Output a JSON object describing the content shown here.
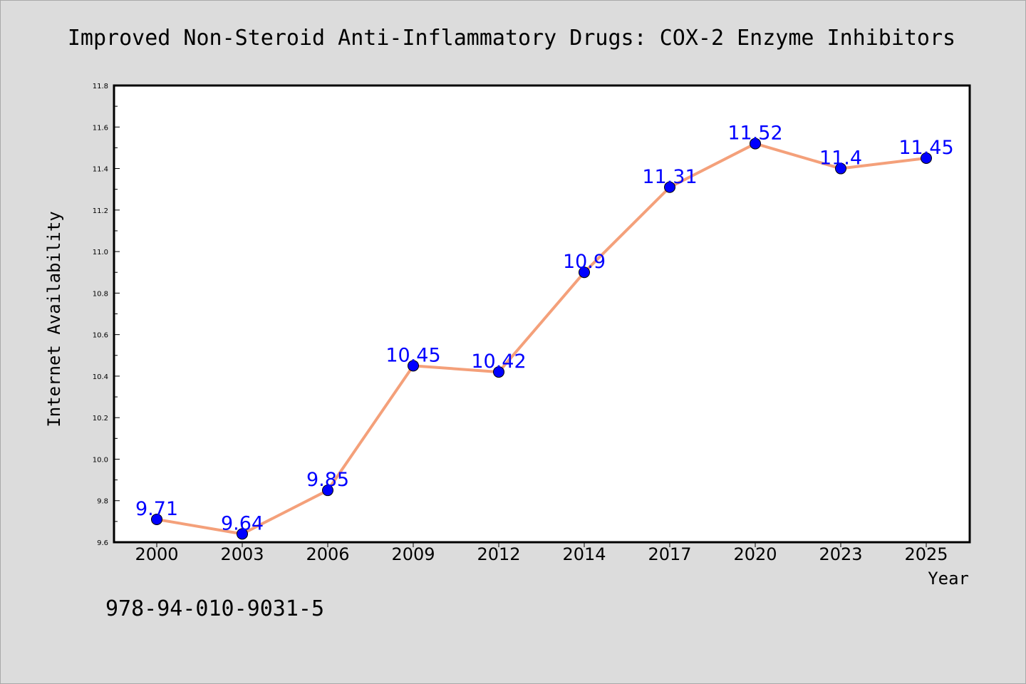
{
  "chart_data": {
    "type": "line",
    "title": "Improved Non-Steroid Anti-Inflammatory Drugs: COX-2 Enzyme Inhibitors",
    "xlabel": "Year",
    "ylabel": "Internet Availability",
    "categories": [
      "2000",
      "2003",
      "2006",
      "2009",
      "2012",
      "2014",
      "2017",
      "2020",
      "2023",
      "2025"
    ],
    "series": [
      {
        "values": [
          9.71,
          9.64,
          9.85,
          10.45,
          10.42,
          10.9,
          11.31,
          11.52,
          11.4,
          11.45
        ]
      }
    ],
    "data_labels": [
      "9.71",
      "9.64",
      "9.85",
      "10.45",
      "10.42",
      "10.9",
      "11.31",
      "11.52",
      "11.4",
      "11.45"
    ],
    "ylim": [
      9.6,
      11.8
    ],
    "yticks": [
      "9.6",
      "9.8",
      "10.0",
      "10.2",
      "10.4",
      "10.6",
      "10.8",
      "11.0",
      "11.2",
      "11.4",
      "11.6",
      "11.8"
    ],
    "grid": false,
    "legend": "none",
    "colors": {
      "line": "#f4a07a",
      "marker": "#0000ff",
      "data_label": "#0000ff",
      "background": "#dcdcdc",
      "plot_area": "#ffffff"
    }
  },
  "footer": {
    "isbn": "978-94-010-9031-5"
  }
}
